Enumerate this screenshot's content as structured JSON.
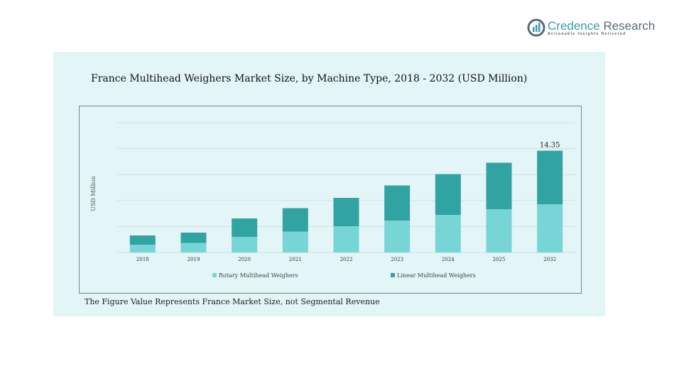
{
  "logo": {
    "name_a": "Credence",
    "name_b": "Research",
    "tagline": "Actionable Insights Delivered"
  },
  "chart_data": {
    "type": "bar",
    "stacked": true,
    "title": "France Multihead Weighers Market Size, by Machine Type, 2018 - 2032 (USD Million)",
    "xlabel": "",
    "ylabel": "USD Million",
    "ylim": [
      0,
      18.3
    ],
    "grid": true,
    "legend_position": "bottom",
    "categories": [
      "2018",
      "2019",
      "2020",
      "2021",
      "2022",
      "2023",
      "2024",
      "2025",
      "2032"
    ],
    "series": [
      {
        "name": "Rotary Multihead Weighers",
        "color": "#78d5d5",
        "values": [
          1.1,
          1.35,
          2.2,
          2.95,
          3.7,
          4.5,
          5.3,
          6.1,
          6.8
        ]
      },
      {
        "name": "Linear Multihead Weighers",
        "color": "#31a3a3",
        "values": [
          1.3,
          1.45,
          2.6,
          3.3,
          4.0,
          4.95,
          5.75,
          6.55,
          7.55
        ]
      }
    ],
    "annotations": [
      {
        "category": "2032",
        "text": "14.35"
      }
    ],
    "footnote": "The Figure Value Represents France Market Size, not Segmental Revenue"
  }
}
